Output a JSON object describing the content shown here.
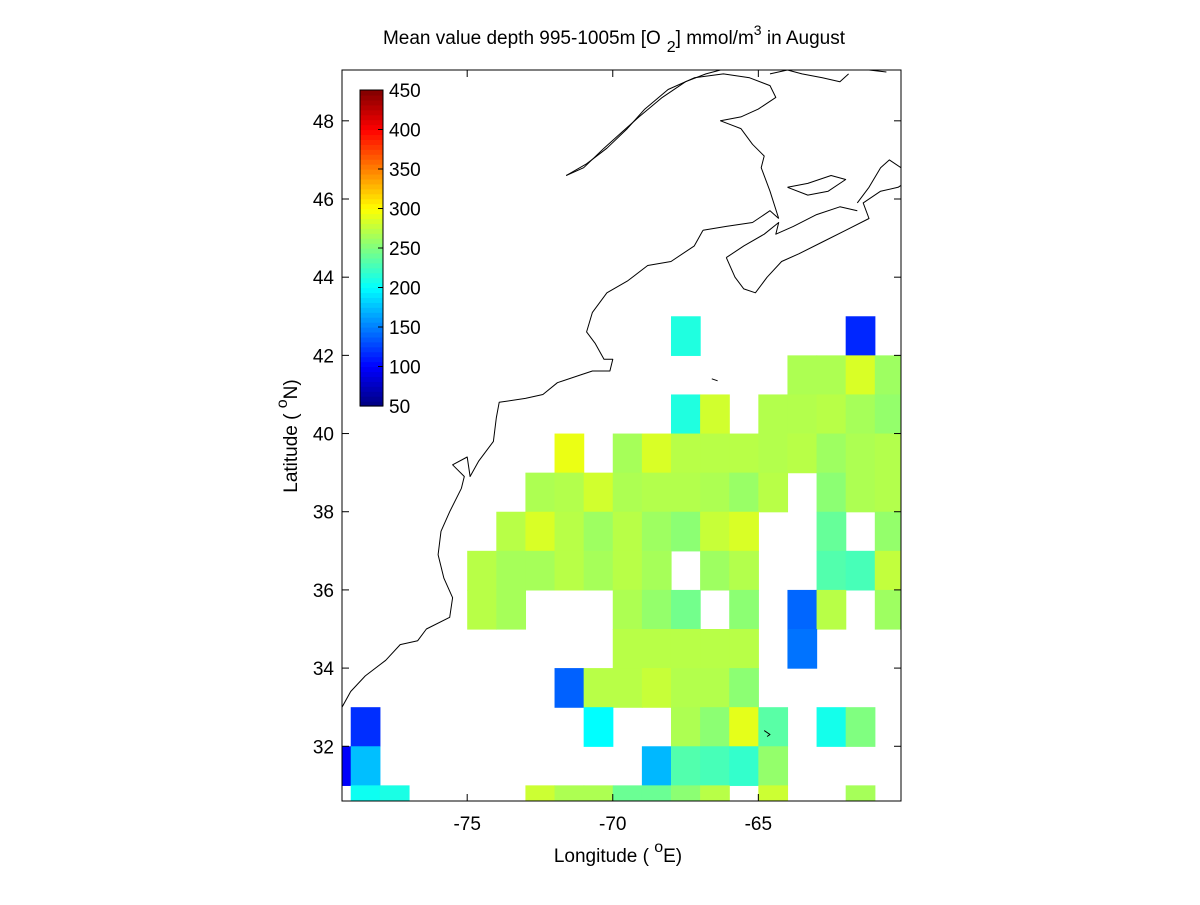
{
  "chart_data": {
    "type": "heatmap",
    "title": {
      "prefix": "Mean value depth 995-1005m [O",
      "sub": "2",
      "middle": "] mmol/m",
      "sup": "3",
      "suffix": " in August"
    },
    "xlabel": {
      "pre": "Longitude ( ",
      "sup": "o",
      "post": "E)"
    },
    "ylabel": {
      "pre": "Latitude ( ",
      "sup": "o",
      "post": "N)"
    },
    "xlim": [
      -79.3,
      -60.1
    ],
    "ylim": [
      30.6,
      49.3
    ],
    "xticks": [
      -75,
      -70,
      -65
    ],
    "yticks": [
      32,
      34,
      36,
      38,
      40,
      42,
      44,
      46,
      48
    ],
    "cell_size_deg": 1,
    "colorscale": "jet",
    "colorbar": {
      "min": 50,
      "max": 450,
      "ticks": [
        50,
        100,
        150,
        200,
        250,
        300,
        350,
        400,
        450
      ],
      "placement": "top-left"
    },
    "grid": false,
    "coastline_color": "#000000",
    "cells": [
      [
        -67.5,
        42.5,
        212
      ],
      [
        -61.5,
        42.5,
        115
      ],
      [
        -63.5,
        41.5,
        268
      ],
      [
        -62.5,
        41.5,
        268
      ],
      [
        -61.5,
        41.5,
        285
      ],
      [
        -60.5,
        41.5,
        262
      ],
      [
        -67.5,
        40.5,
        212
      ],
      [
        -66.5,
        40.5,
        282
      ],
      [
        -64.5,
        40.5,
        270
      ],
      [
        -63.5,
        40.5,
        270
      ],
      [
        -62.5,
        40.5,
        272
      ],
      [
        -61.5,
        40.5,
        265
      ],
      [
        -60.5,
        40.5,
        258
      ],
      [
        -71.5,
        39.5,
        292
      ],
      [
        -69.5,
        39.5,
        265
      ],
      [
        -68.5,
        39.5,
        285
      ],
      [
        -67.5,
        39.5,
        272
      ],
      [
        -66.5,
        39.5,
        272
      ],
      [
        -65.5,
        39.5,
        272
      ],
      [
        -64.5,
        39.5,
        270
      ],
      [
        -63.5,
        39.5,
        272
      ],
      [
        -62.5,
        39.5,
        262
      ],
      [
        -61.5,
        39.5,
        268
      ],
      [
        -60.5,
        39.5,
        270
      ],
      [
        -72.5,
        38.5,
        268
      ],
      [
        -71.5,
        38.5,
        270
      ],
      [
        -70.5,
        38.5,
        282
      ],
      [
        -69.5,
        38.5,
        268
      ],
      [
        -68.5,
        38.5,
        270
      ],
      [
        -67.5,
        38.5,
        270
      ],
      [
        -66.5,
        38.5,
        268
      ],
      [
        -65.5,
        38.5,
        260
      ],
      [
        -64.5,
        38.5,
        272
      ],
      [
        -62.5,
        38.5,
        255
      ],
      [
        -61.5,
        38.5,
        268
      ],
      [
        -60.5,
        38.5,
        270
      ],
      [
        -73.5,
        37.5,
        272
      ],
      [
        -72.5,
        37.5,
        285
      ],
      [
        -71.5,
        37.5,
        272
      ],
      [
        -70.5,
        37.5,
        262
      ],
      [
        -69.5,
        37.5,
        272
      ],
      [
        -68.5,
        37.5,
        262
      ],
      [
        -67.5,
        37.5,
        255
      ],
      [
        -66.5,
        37.5,
        278
      ],
      [
        -65.5,
        37.5,
        285
      ],
      [
        -62.5,
        37.5,
        240
      ],
      [
        -60.5,
        37.5,
        258
      ],
      [
        -74.5,
        36.5,
        272
      ],
      [
        -73.5,
        36.5,
        265
      ],
      [
        -72.5,
        36.5,
        265
      ],
      [
        -71.5,
        36.5,
        272
      ],
      [
        -70.5,
        36.5,
        265
      ],
      [
        -69.5,
        36.5,
        272
      ],
      [
        -68.5,
        36.5,
        265
      ],
      [
        -66.5,
        36.5,
        262
      ],
      [
        -65.5,
        36.5,
        270
      ],
      [
        -62.5,
        36.5,
        232
      ],
      [
        -61.5,
        36.5,
        228
      ],
      [
        -60.5,
        36.5,
        276
      ],
      [
        -74.5,
        35.5,
        272
      ],
      [
        -73.5,
        35.5,
        265
      ],
      [
        -69.5,
        35.5,
        268
      ],
      [
        -68.5,
        35.5,
        258
      ],
      [
        -67.5,
        35.5,
        245
      ],
      [
        -65.5,
        35.5,
        255
      ],
      [
        -63.5,
        35.5,
        140
      ],
      [
        -62.5,
        35.5,
        272
      ],
      [
        -60.5,
        35.5,
        262
      ],
      [
        -69.5,
        34.5,
        272
      ],
      [
        -68.5,
        34.5,
        272
      ],
      [
        -67.5,
        34.5,
        272
      ],
      [
        -66.5,
        34.5,
        272
      ],
      [
        -65.5,
        34.5,
        272
      ],
      [
        -63.5,
        34.5,
        145
      ],
      [
        -71.5,
        33.5,
        138
      ],
      [
        -70.5,
        33.5,
        272
      ],
      [
        -69.5,
        33.5,
        272
      ],
      [
        -68.5,
        33.5,
        278
      ],
      [
        -67.5,
        33.5,
        270
      ],
      [
        -66.5,
        33.5,
        270
      ],
      [
        -65.5,
        33.5,
        255
      ],
      [
        -78.5,
        32.5,
        118
      ],
      [
        -70.5,
        32.5,
        200
      ],
      [
        -67.5,
        32.5,
        268
      ],
      [
        -66.5,
        32.5,
        255
      ],
      [
        -65.5,
        32.5,
        290
      ],
      [
        -64.5,
        32.5,
        235
      ],
      [
        -62.5,
        32.5,
        208
      ],
      [
        -61.5,
        32.5,
        250
      ],
      [
        -79.5,
        31.5,
        98
      ],
      [
        -78.5,
        31.5,
        175
      ],
      [
        -68.5,
        31.5,
        172
      ],
      [
        -67.5,
        31.5,
        232
      ],
      [
        -66.5,
        31.5,
        228
      ],
      [
        -65.5,
        31.5,
        220
      ],
      [
        -64.5,
        31.5,
        258
      ],
      [
        -78.5,
        30.5,
        205
      ],
      [
        -77.5,
        30.5,
        210
      ],
      [
        -72.5,
        30.5,
        280
      ],
      [
        -71.5,
        30.5,
        268
      ],
      [
        -70.5,
        30.5,
        268
      ],
      [
        -69.5,
        30.5,
        242
      ],
      [
        -68.5,
        30.5,
        242
      ],
      [
        -67.5,
        30.5,
        255
      ],
      [
        -66.5,
        30.5,
        272
      ],
      [
        -64.5,
        30.5,
        280
      ],
      [
        -61.5,
        30.5,
        265
      ]
    ],
    "coastlines": [
      [
        [
          -79.3,
          33.0
        ],
        [
          -79.0,
          33.4
        ],
        [
          -78.5,
          33.8
        ],
        [
          -77.8,
          34.2
        ],
        [
          -77.3,
          34.6
        ],
        [
          -76.7,
          34.7
        ],
        [
          -76.4,
          35.0
        ],
        [
          -75.6,
          35.3
        ],
        [
          -75.5,
          35.8
        ],
        [
          -75.8,
          36.3
        ],
        [
          -76.0,
          36.9
        ],
        [
          -75.9,
          37.5
        ],
        [
          -75.6,
          38.0
        ],
        [
          -75.2,
          38.6
        ],
        [
          -75.1,
          38.9
        ],
        [
          -75.5,
          39.2
        ],
        [
          -75.0,
          39.4
        ],
        [
          -74.9,
          38.9
        ],
        [
          -74.6,
          39.3
        ],
        [
          -74.1,
          39.8
        ],
        [
          -74.0,
          40.4
        ],
        [
          -73.9,
          40.8
        ],
        [
          -73.0,
          40.9
        ],
        [
          -72.4,
          41.0
        ],
        [
          -71.9,
          41.3
        ],
        [
          -71.1,
          41.5
        ],
        [
          -70.7,
          41.6
        ],
        [
          -70.1,
          41.6
        ],
        [
          -70.0,
          41.9
        ],
        [
          -70.3,
          41.9
        ],
        [
          -70.6,
          42.3
        ],
        [
          -70.9,
          42.6
        ],
        [
          -70.7,
          43.1
        ],
        [
          -70.2,
          43.6
        ],
        [
          -69.5,
          43.9
        ],
        [
          -68.8,
          44.3
        ],
        [
          -68.0,
          44.4
        ],
        [
          -67.2,
          44.8
        ],
        [
          -66.9,
          45.2
        ]
      ],
      [
        [
          -66.9,
          45.2
        ],
        [
          -66.1,
          45.3
        ],
        [
          -65.2,
          45.4
        ],
        [
          -64.6,
          45.7
        ],
        [
          -64.3,
          45.5
        ]
      ],
      [
        [
          -66.1,
          44.5
        ],
        [
          -65.8,
          44.0
        ],
        [
          -65.5,
          43.7
        ],
        [
          -65.1,
          43.6
        ],
        [
          -64.7,
          44.0
        ],
        [
          -64.2,
          44.4
        ],
        [
          -63.6,
          44.6
        ],
        [
          -62.8,
          44.9
        ],
        [
          -62.0,
          45.2
        ],
        [
          -61.2,
          45.5
        ],
        [
          -61.4,
          45.9
        ],
        [
          -60.8,
          46.2
        ],
        [
          -60.2,
          46.3
        ],
        [
          -60.0,
          46.4
        ]
      ],
      [
        [
          -66.1,
          44.5
        ],
        [
          -65.5,
          44.8
        ],
        [
          -64.8,
          45.1
        ],
        [
          -64.3,
          45.4
        ],
        [
          -64.4,
          45.1
        ],
        [
          -63.8,
          45.3
        ],
        [
          -63.0,
          45.6
        ],
        [
          -62.2,
          45.8
        ],
        [
          -61.6,
          45.7
        ]
      ],
      [
        [
          -64.0,
          46.3
        ],
        [
          -63.3,
          46.4
        ],
        [
          -62.5,
          46.6
        ],
        [
          -62.0,
          46.5
        ],
        [
          -62.6,
          46.2
        ],
        [
          -63.3,
          46.1
        ],
        [
          -64.0,
          46.3
        ]
      ],
      [
        [
          -64.3,
          45.5
        ],
        [
          -64.6,
          46.2
        ],
        [
          -64.9,
          46.8
        ],
        [
          -64.8,
          47.1
        ],
        [
          -65.2,
          47.4
        ],
        [
          -65.6,
          47.8
        ],
        [
          -66.3,
          48.0
        ],
        [
          -65.6,
          48.1
        ],
        [
          -65.0,
          48.3
        ],
        [
          -64.4,
          48.6
        ],
        [
          -64.6,
          48.9
        ],
        [
          -65.3,
          49.1
        ],
        [
          -66.2,
          49.2
        ],
        [
          -67.2,
          49.1
        ],
        [
          -68.1,
          48.8
        ],
        [
          -68.9,
          48.3
        ],
        [
          -69.5,
          47.8
        ],
        [
          -70.2,
          47.3
        ],
        [
          -70.9,
          46.9
        ],
        [
          -71.6,
          46.6
        ]
      ],
      [
        [
          -71.6,
          46.6
        ],
        [
          -71.0,
          46.8
        ],
        [
          -70.3,
          47.3
        ],
        [
          -69.7,
          47.7
        ],
        [
          -69.1,
          48.1
        ],
        [
          -68.3,
          48.6
        ],
        [
          -67.5,
          49.0
        ],
        [
          -66.8,
          49.2
        ],
        [
          -66.3,
          49.3
        ]
      ],
      [
        [
          -64.6,
          49.2
        ],
        [
          -64.0,
          49.3
        ],
        [
          -63.5,
          49.2
        ],
        [
          -62.8,
          49.1
        ],
        [
          -62.2,
          49.0
        ],
        [
          -61.9,
          49.2
        ]
      ],
      [
        [
          -61.8,
          49.3
        ],
        [
          -61.2,
          49.3
        ],
        [
          -60.6,
          49.25
        ]
      ],
      [
        [
          -61.6,
          45.9
        ],
        [
          -61.2,
          46.3
        ],
        [
          -60.8,
          46.8
        ],
        [
          -60.5,
          47.0
        ],
        [
          -60.1,
          46.8
        ],
        [
          -60.1,
          46.2
        ]
      ],
      [
        [
          -66.6,
          41.4
        ],
        [
          -66.4,
          41.35
        ]
      ],
      [
        [
          -64.8,
          32.4
        ],
        [
          -64.6,
          32.3
        ],
        [
          -64.7,
          32.25
        ]
      ]
    ]
  }
}
